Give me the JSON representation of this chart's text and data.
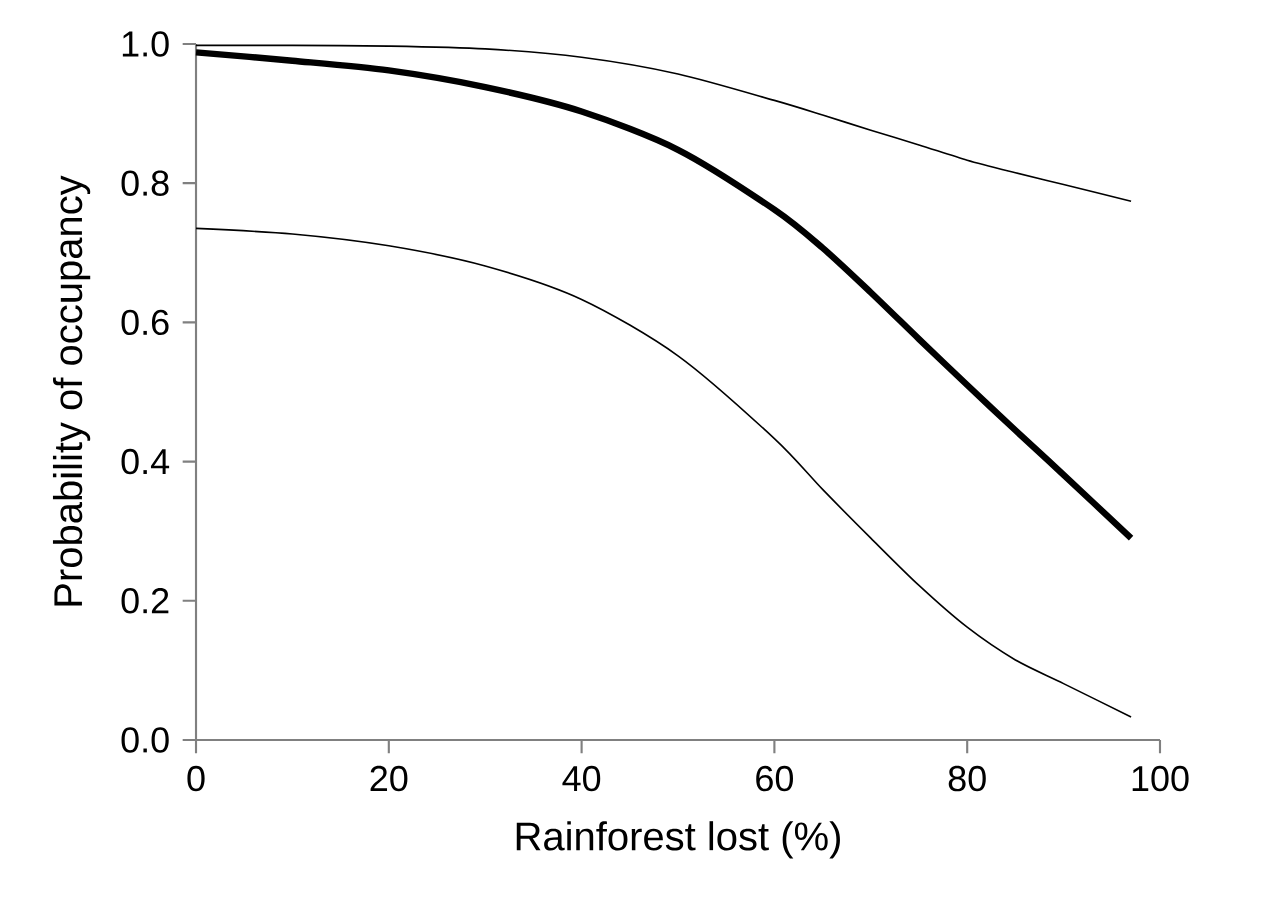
{
  "chart_data": {
    "type": "line",
    "xlabel": "Rainforest lost (%)",
    "ylabel": "Probability of occupancy",
    "x": [
      0,
      10,
      20,
      30,
      40,
      50,
      60,
      65,
      70,
      75,
      80,
      85,
      90,
      97
    ],
    "series": [
      {
        "color": "#000000",
        "values": [
          0.988,
          0.976,
          0.962,
          0.938,
          0.903,
          0.848,
          0.762,
          0.707,
          0.643,
          0.576,
          0.51,
          0.445,
          0.381,
          0.29
        ]
      },
      {
        "color": "#000000",
        "values": [
          0.735,
          0.727,
          0.71,
          0.681,
          0.633,
          0.552,
          0.433,
          0.36,
          0.29,
          0.222,
          0.162,
          0.115,
          0.081,
          0.033
        ]
      },
      {
        "color": "#000000",
        "values": [
          0.998,
          0.998,
          0.997,
          0.993,
          0.981,
          0.957,
          0.919,
          0.898,
          0.876,
          0.855,
          0.833,
          0.815,
          0.798,
          0.774
        ]
      }
    ],
    "xlim": [
      0,
      100
    ],
    "ylim": [
      0,
      1
    ],
    "xticks": [
      0,
      20,
      40,
      60,
      80,
      100
    ],
    "yticks": [
      {
        "value": 0,
        "label": "0.0"
      },
      {
        "value": 0.2,
        "label": "0.2"
      },
      {
        "value": 0.4,
        "label": "0.4"
      },
      {
        "value": 0.6,
        "label": "0.6"
      },
      {
        "value": 0.8,
        "label": "0.8"
      },
      {
        "value": 1,
        "label": "1.0"
      }
    ],
    "grid": false,
    "marker": "none",
    "line_style": "solid"
  }
}
